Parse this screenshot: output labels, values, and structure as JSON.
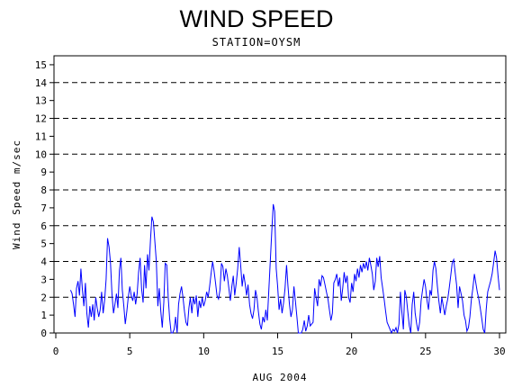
{
  "chart_data": {
    "type": "line",
    "title": "WIND SPEED",
    "subtitle": "STATION=OYSM",
    "xlabel": "AUG 2004",
    "ylabel": "Wind Speed m/sec",
    "xlim": [
      0,
      30
    ],
    "ylim": [
      0,
      15.5
    ],
    "x_ticks": [
      0,
      5,
      10,
      15,
      20,
      25,
      30
    ],
    "y_ticks": [
      0,
      1,
      2,
      3,
      4,
      5,
      6,
      7,
      8,
      9,
      10,
      11,
      12,
      13,
      14,
      15
    ],
    "reference_lines": [
      2,
      4,
      6,
      8,
      10,
      12,
      14
    ],
    "grid": "dashed horizontal reference lines",
    "colors": {
      "series": "#0000ff",
      "reference": "#000000"
    },
    "series": [
      {
        "values": [
          [
            1.0,
            2.4
          ],
          [
            1.1,
            2.2
          ],
          [
            1.2,
            1.6
          ],
          [
            1.3,
            0.9
          ],
          [
            1.4,
            2.5
          ],
          [
            1.5,
            2.9
          ],
          [
            1.6,
            2.1
          ],
          [
            1.7,
            3.6
          ],
          [
            1.8,
            2.4
          ],
          [
            1.9,
            1.5
          ],
          [
            2.0,
            2.8
          ],
          [
            2.1,
            1.1
          ],
          [
            2.2,
            0.3
          ],
          [
            2.3,
            1.5
          ],
          [
            2.4,
            0.9
          ],
          [
            2.5,
            1.6
          ],
          [
            2.6,
            0.7
          ],
          [
            2.7,
            2.0
          ],
          [
            2.8,
            1.4
          ],
          [
            2.9,
            0.9
          ],
          [
            3.0,
            1.3
          ],
          [
            3.1,
            2.3
          ],
          [
            3.2,
            1.1
          ],
          [
            3.3,
            1.8
          ],
          [
            3.4,
            3.0
          ],
          [
            3.5,
            5.3
          ],
          [
            3.6,
            4.8
          ],
          [
            3.7,
            3.9
          ],
          [
            3.8,
            2.2
          ],
          [
            3.9,
            1.1
          ],
          [
            4.0,
            1.6
          ],
          [
            4.1,
            2.2
          ],
          [
            4.2,
            1.4
          ],
          [
            4.3,
            3.5
          ],
          [
            4.4,
            4.2
          ],
          [
            4.5,
            2.4
          ],
          [
            4.6,
            1.5
          ],
          [
            4.7,
            0.5
          ],
          [
            4.8,
            1.2
          ],
          [
            4.9,
            2.0
          ],
          [
            5.0,
            2.6
          ],
          [
            5.1,
            2.1
          ],
          [
            5.2,
            1.8
          ],
          [
            5.3,
            2.3
          ],
          [
            5.4,
            1.6
          ],
          [
            5.5,
            2.2
          ],
          [
            5.6,
            3.4
          ],
          [
            5.7,
            4.2
          ],
          [
            5.8,
            2.5
          ],
          [
            5.9,
            1.7
          ],
          [
            6.0,
            3.8
          ],
          [
            6.1,
            2.5
          ],
          [
            6.2,
            4.4
          ],
          [
            6.3,
            3.5
          ],
          [
            6.4,
            5.2
          ],
          [
            6.5,
            6.5
          ],
          [
            6.6,
            6.2
          ],
          [
            6.7,
            5.1
          ],
          [
            6.8,
            4.0
          ],
          [
            6.9,
            1.5
          ],
          [
            7.0,
            2.5
          ],
          [
            7.1,
            1.2
          ],
          [
            7.2,
            0.3
          ],
          [
            7.3,
            1.7
          ],
          [
            7.4,
            3.9
          ],
          [
            7.5,
            3.8
          ],
          [
            7.6,
            2.0
          ],
          [
            7.7,
            0.8
          ],
          [
            7.8,
            0.0
          ],
          [
            7.9,
            0.0
          ],
          [
            8.0,
            0.2
          ],
          [
            8.1,
            0.9
          ],
          [
            8.2,
            0.0
          ],
          [
            8.3,
            1.6
          ],
          [
            8.4,
            2.2
          ],
          [
            8.5,
            2.6
          ],
          [
            8.6,
            2.0
          ],
          [
            8.7,
            1.2
          ],
          [
            8.8,
            0.6
          ],
          [
            8.9,
            0.4
          ],
          [
            9.0,
            1.4
          ],
          [
            9.1,
            2.0
          ],
          [
            9.2,
            1.1
          ],
          [
            9.3,
            2.0
          ],
          [
            9.4,
            1.6
          ],
          [
            9.5,
            2.1
          ],
          [
            9.6,
            0.9
          ],
          [
            9.7,
            1.8
          ],
          [
            9.8,
            1.4
          ],
          [
            9.9,
            2.0
          ],
          [
            10.0,
            1.5
          ],
          [
            10.1,
            1.8
          ],
          [
            10.2,
            2.3
          ],
          [
            10.3,
            2.0
          ],
          [
            10.4,
            2.6
          ],
          [
            10.5,
            3.3
          ],
          [
            10.6,
            4.0
          ],
          [
            10.7,
            3.5
          ],
          [
            10.8,
            2.8
          ],
          [
            10.9,
            2.1
          ],
          [
            11.0,
            1.9
          ],
          [
            11.1,
            2.4
          ],
          [
            11.2,
            3.9
          ],
          [
            11.3,
            3.7
          ],
          [
            11.4,
            2.9
          ],
          [
            11.5,
            3.6
          ],
          [
            11.6,
            3.2
          ],
          [
            11.7,
            2.5
          ],
          [
            11.8,
            1.8
          ],
          [
            11.9,
            2.6
          ],
          [
            12.0,
            3.2
          ],
          [
            12.1,
            2.1
          ],
          [
            12.2,
            2.8
          ],
          [
            12.3,
            3.6
          ],
          [
            12.4,
            4.8
          ],
          [
            12.5,
            3.8
          ],
          [
            12.6,
            2.6
          ],
          [
            12.7,
            3.3
          ],
          [
            12.8,
            2.8
          ],
          [
            12.9,
            2.1
          ],
          [
            13.0,
            2.7
          ],
          [
            13.1,
            1.6
          ],
          [
            13.2,
            1.1
          ],
          [
            13.3,
            0.8
          ],
          [
            13.4,
            1.3
          ],
          [
            13.5,
            2.4
          ],
          [
            13.6,
            2.0
          ],
          [
            13.7,
            1.2
          ],
          [
            13.8,
            0.5
          ],
          [
            13.9,
            0.2
          ],
          [
            14.0,
            0.9
          ],
          [
            14.1,
            0.6
          ],
          [
            14.2,
            1.3
          ],
          [
            14.3,
            0.7
          ],
          [
            14.4,
            2.3
          ],
          [
            14.5,
            4.0
          ],
          [
            14.6,
            5.6
          ],
          [
            14.7,
            7.2
          ],
          [
            14.8,
            6.8
          ],
          [
            14.9,
            3.6
          ],
          [
            15.0,
            2.6
          ],
          [
            15.1,
            1.3
          ],
          [
            15.2,
            1.9
          ],
          [
            15.3,
            1.1
          ],
          [
            15.4,
            1.7
          ],
          [
            15.5,
            2.5
          ],
          [
            15.6,
            3.8
          ],
          [
            15.7,
            2.6
          ],
          [
            15.8,
            1.6
          ],
          [
            15.9,
            0.9
          ],
          [
            16.0,
            1.3
          ],
          [
            16.1,
            2.6
          ],
          [
            16.2,
            1.8
          ],
          [
            16.3,
            0.9
          ],
          [
            16.4,
            0.0
          ],
          [
            16.5,
            0.0
          ],
          [
            16.6,
            0.0
          ],
          [
            16.7,
            0.2
          ],
          [
            16.8,
            0.7
          ],
          [
            16.9,
            0.1
          ],
          [
            17.0,
            0.4
          ],
          [
            17.1,
            1.0
          ],
          [
            17.2,
            0.4
          ],
          [
            17.3,
            0.5
          ],
          [
            17.4,
            0.6
          ],
          [
            17.5,
            2.5
          ],
          [
            17.6,
            2.0
          ],
          [
            17.7,
            1.5
          ],
          [
            17.8,
            3.0
          ],
          [
            17.9,
            2.6
          ],
          [
            18.0,
            3.2
          ],
          [
            18.1,
            3.1
          ],
          [
            18.2,
            2.7
          ],
          [
            18.3,
            2.3
          ],
          [
            18.4,
            1.9
          ],
          [
            18.5,
            1.3
          ],
          [
            18.6,
            0.7
          ],
          [
            18.7,
            1.1
          ],
          [
            18.8,
            2.8
          ],
          [
            18.9,
            3.0
          ],
          [
            19.0,
            3.3
          ],
          [
            19.1,
            2.6
          ],
          [
            19.2,
            3.1
          ],
          [
            19.3,
            1.8
          ],
          [
            19.4,
            2.5
          ],
          [
            19.5,
            3.4
          ],
          [
            19.6,
            2.8
          ],
          [
            19.7,
            3.2
          ],
          [
            19.8,
            2.0
          ],
          [
            19.9,
            1.7
          ],
          [
            20.0,
            2.8
          ],
          [
            20.1,
            2.3
          ],
          [
            20.2,
            3.3
          ],
          [
            20.3,
            2.9
          ],
          [
            20.4,
            3.6
          ],
          [
            20.5,
            3.1
          ],
          [
            20.6,
            3.8
          ],
          [
            20.7,
            3.4
          ],
          [
            20.8,
            3.9
          ],
          [
            20.9,
            3.6
          ],
          [
            21.0,
            4.0
          ],
          [
            21.1,
            3.5
          ],
          [
            21.2,
            4.2
          ],
          [
            21.3,
            3.8
          ],
          [
            21.4,
            3.3
          ],
          [
            21.5,
            2.4
          ],
          [
            21.6,
            2.9
          ],
          [
            21.7,
            4.2
          ],
          [
            21.8,
            3.7
          ],
          [
            21.9,
            4.3
          ],
          [
            22.0,
            3.1
          ],
          [
            22.1,
            2.5
          ],
          [
            22.2,
            1.9
          ],
          [
            22.3,
            1.2
          ],
          [
            22.4,
            0.6
          ],
          [
            22.5,
            0.4
          ],
          [
            22.6,
            0.2
          ],
          [
            22.7,
            0.0
          ],
          [
            22.8,
            0.2
          ],
          [
            22.9,
            0.1
          ],
          [
            23.0,
            0.3
          ],
          [
            23.1,
            0.0
          ],
          [
            23.2,
            0.5
          ],
          [
            23.3,
            2.3
          ],
          [
            23.4,
            1.2
          ],
          [
            23.5,
            0.2
          ],
          [
            23.6,
            2.4
          ],
          [
            23.7,
            2.0
          ],
          [
            23.8,
            1.2
          ],
          [
            23.9,
            0.4
          ],
          [
            24.0,
            0.0
          ],
          [
            24.1,
            1.6
          ],
          [
            24.2,
            2.3
          ],
          [
            24.3,
            1.1
          ],
          [
            24.4,
            0.5
          ],
          [
            24.5,
            0.1
          ],
          [
            24.6,
            0.6
          ],
          [
            24.7,
            1.8
          ],
          [
            24.8,
            2.4
          ],
          [
            24.9,
            3.0
          ],
          [
            25.0,
            2.6
          ],
          [
            25.1,
            1.8
          ],
          [
            25.2,
            1.3
          ],
          [
            25.3,
            2.4
          ],
          [
            25.4,
            2.1
          ],
          [
            25.5,
            3.5
          ],
          [
            25.6,
            4.0
          ],
          [
            25.7,
            3.6
          ],
          [
            25.8,
            2.6
          ],
          [
            25.9,
            1.8
          ],
          [
            26.0,
            1.1
          ],
          [
            26.1,
            2.0
          ],
          [
            26.2,
            1.5
          ],
          [
            26.3,
            1.0
          ],
          [
            26.4,
            1.5
          ],
          [
            26.5,
            1.9
          ],
          [
            26.6,
            2.5
          ],
          [
            26.7,
            3.2
          ],
          [
            26.8,
            3.9
          ],
          [
            26.9,
            4.1
          ],
          [
            27.0,
            3.4
          ],
          [
            27.1,
            2.7
          ],
          [
            27.2,
            1.4
          ],
          [
            27.3,
            2.6
          ],
          [
            27.4,
            2.2
          ],
          [
            27.5,
            1.8
          ],
          [
            27.6,
            1.0
          ],
          [
            27.7,
            0.7
          ],
          [
            27.8,
            0.1
          ],
          [
            27.9,
            0.3
          ],
          [
            28.0,
            0.9
          ],
          [
            28.1,
            1.9
          ],
          [
            28.2,
            2.5
          ],
          [
            28.3,
            3.3
          ],
          [
            28.4,
            2.8
          ],
          [
            28.5,
            2.3
          ],
          [
            28.6,
            1.9
          ],
          [
            28.7,
            1.4
          ],
          [
            28.8,
            0.8
          ],
          [
            28.9,
            0.2
          ],
          [
            29.0,
            0.0
          ],
          [
            29.1,
            1.3
          ],
          [
            29.2,
            2.3
          ],
          [
            29.3,
            2.6
          ],
          [
            29.4,
            2.9
          ],
          [
            29.5,
            3.3
          ],
          [
            29.6,
            3.9
          ],
          [
            29.7,
            4.6
          ],
          [
            29.8,
            4.2
          ],
          [
            29.9,
            3.2
          ],
          [
            30.0,
            2.4
          ]
        ]
      }
    ]
  }
}
